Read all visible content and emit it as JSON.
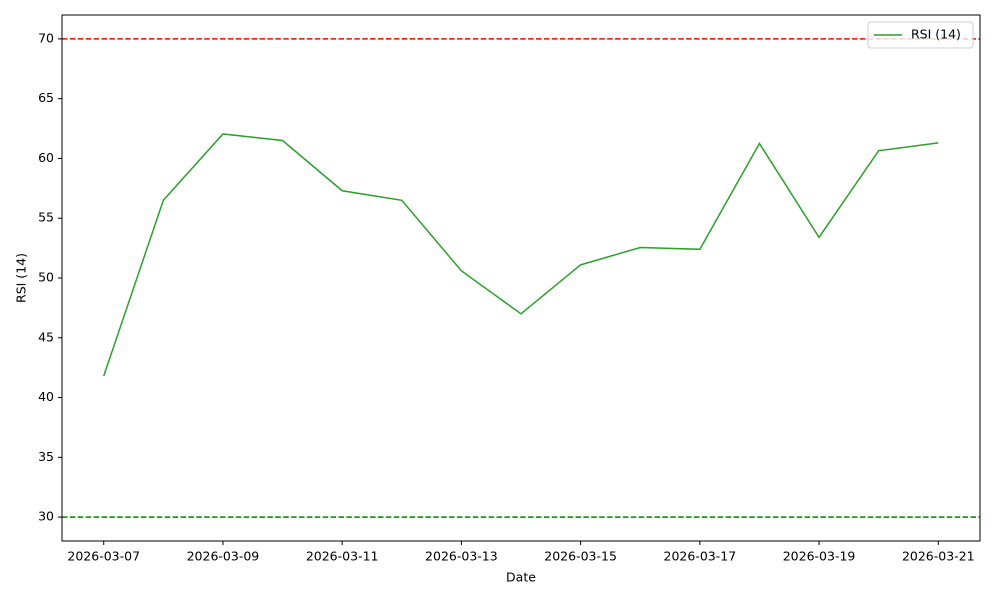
{
  "chart_data": {
    "type": "line",
    "x": [
      "2026-03-07",
      "2026-03-08",
      "2026-03-09",
      "2026-03-10",
      "2026-03-11",
      "2026-03-12",
      "2026-03-13",
      "2026-03-14",
      "2026-03-15",
      "2026-03-16",
      "2026-03-17",
      "2026-03-18",
      "2026-03-19",
      "2026-03-20",
      "2026-03-21"
    ],
    "series": [
      {
        "name": "RSI (14)",
        "color": "#2ca02c",
        "values": [
          41.8,
          56.5,
          62.05,
          61.5,
          57.3,
          56.5,
          50.6,
          47.0,
          51.1,
          52.55,
          52.4,
          61.25,
          53.4,
          60.65,
          61.3
        ]
      }
    ],
    "hlines": [
      {
        "value": 70,
        "color": "#ff0000",
        "style": "dashed"
      },
      {
        "value": 30,
        "color": "#008000",
        "style": "dashed"
      }
    ],
    "xlabel": "Date",
    "ylabel": "RSI (14)",
    "xlim": [
      "2026-03-06T07:12",
      "2026-03-21T16:48"
    ],
    "xticks": [
      "2026-03-07",
      "2026-03-09",
      "2026-03-11",
      "2026-03-13",
      "2026-03-15",
      "2026-03-17",
      "2026-03-19",
      "2026-03-21"
    ],
    "ylim": [
      28,
      72
    ],
    "yticks": [
      30,
      35,
      40,
      45,
      50,
      55,
      60,
      65,
      70
    ],
    "grid": false,
    "legend": "upper right"
  }
}
